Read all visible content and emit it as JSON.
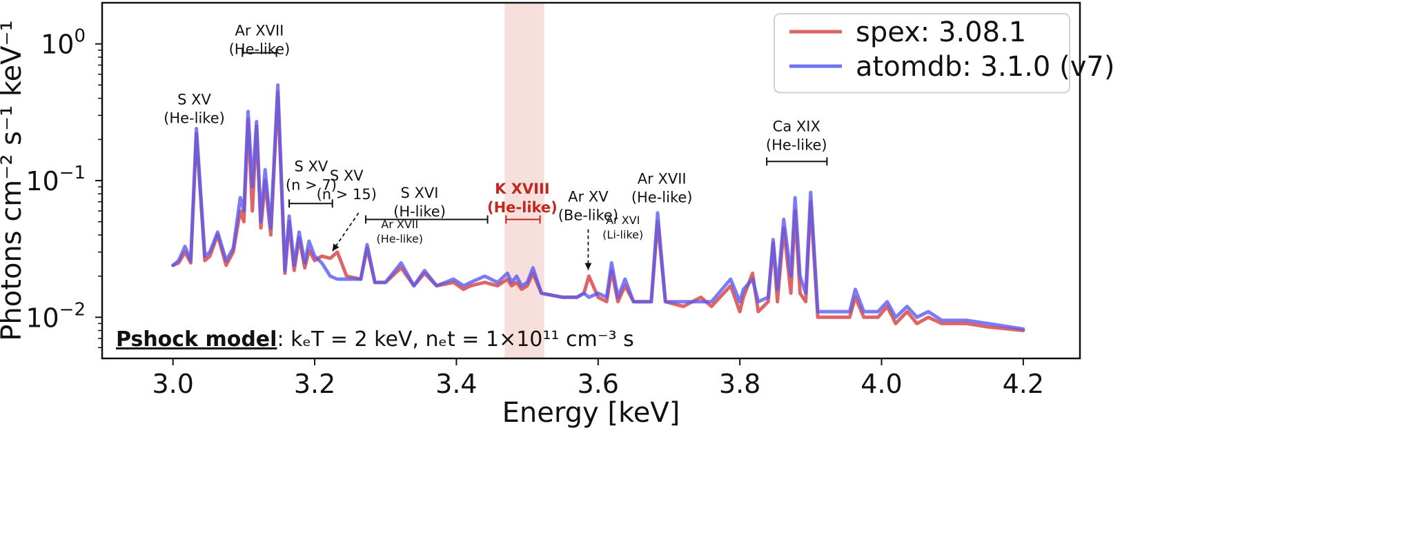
{
  "chart_data": {
    "type": "line",
    "xlabel": "Energy [keV]",
    "ylabel": "Photons cm⁻² s⁻¹ keV⁻¹",
    "xlim": [
      2.9,
      4.28
    ],
    "ylim": [
      0.005,
      2.0
    ],
    "yscale": "log",
    "xticks": [
      3.0,
      3.2,
      3.4,
      3.6,
      3.8,
      4.0,
      4.2
    ],
    "xtick_labels": [
      "3.0",
      "3.2",
      "3.4",
      "3.6",
      "3.8",
      "4.0",
      "4.2"
    ],
    "yticks": [
      {
        "value": 1,
        "base": "10",
        "exp": "0"
      },
      {
        "value": 0.1,
        "base": "10",
        "exp": "−1"
      },
      {
        "value": 0.01,
        "base": "10",
        "exp": "−2"
      }
    ],
    "highlight_band": {
      "x_range": [
        3.468,
        3.524
      ],
      "color": "#f4d6d0"
    },
    "legend": {
      "location": "top-right"
    },
    "series": [
      {
        "name": "spex: 3.08.1",
        "color": "#d84a4a",
        "x": [
          3.0,
          3.008,
          3.017,
          3.025,
          3.033,
          3.045,
          3.052,
          3.063,
          3.075,
          3.085,
          3.095,
          3.1,
          3.106,
          3.112,
          3.118,
          3.124,
          3.13,
          3.138,
          3.148,
          3.158,
          3.164,
          3.171,
          3.178,
          3.186,
          3.192,
          3.2,
          3.21,
          3.222,
          3.232,
          3.245,
          3.265,
          3.274,
          3.285,
          3.3,
          3.322,
          3.34,
          3.355,
          3.372,
          3.396,
          3.41,
          3.42,
          3.44,
          3.458,
          3.472,
          3.478,
          3.485,
          3.492,
          3.5,
          3.508,
          3.52,
          3.55,
          3.57,
          3.58,
          3.587,
          3.6,
          3.612,
          3.619,
          3.628,
          3.638,
          3.65,
          3.675,
          3.684,
          3.695,
          3.72,
          3.745,
          3.76,
          3.787,
          3.8,
          3.805,
          3.818,
          3.826,
          3.84,
          3.847,
          3.853,
          3.862,
          3.872,
          3.878,
          3.885,
          3.893,
          3.9,
          3.91,
          3.93,
          3.955,
          3.963,
          3.975,
          3.995,
          4.008,
          4.02,
          4.036,
          4.05,
          4.066,
          4.085,
          4.12,
          4.15,
          4.2
        ],
        "y": [
          0.024,
          0.025,
          0.03,
          0.025,
          0.22,
          0.026,
          0.028,
          0.04,
          0.024,
          0.03,
          0.06,
          0.05,
          0.28,
          0.06,
          0.25,
          0.045,
          0.1,
          0.04,
          0.44,
          0.021,
          0.05,
          0.022,
          0.038,
          0.023,
          0.031,
          0.026,
          0.028,
          0.027,
          0.03,
          0.02,
          0.019,
          0.032,
          0.018,
          0.018,
          0.023,
          0.017,
          0.021,
          0.017,
          0.018,
          0.016,
          0.017,
          0.018,
          0.017,
          0.019,
          0.017,
          0.018,
          0.016,
          0.017,
          0.021,
          0.015,
          0.014,
          0.014,
          0.015,
          0.02,
          0.014,
          0.013,
          0.022,
          0.013,
          0.017,
          0.013,
          0.013,
          0.05,
          0.013,
          0.012,
          0.014,
          0.012,
          0.017,
          0.011,
          0.014,
          0.021,
          0.011,
          0.013,
          0.035,
          0.013,
          0.045,
          0.015,
          0.06,
          0.015,
          0.013,
          0.07,
          0.01,
          0.01,
          0.01,
          0.014,
          0.01,
          0.01,
          0.012,
          0.009,
          0.011,
          0.009,
          0.01,
          0.009,
          0.009,
          0.0085,
          0.008
        ]
      },
      {
        "name": "atomdb: 3.1.0 (v7)",
        "color": "#5a5af0",
        "x": [
          3.0,
          3.008,
          3.017,
          3.025,
          3.033,
          3.045,
          3.052,
          3.063,
          3.075,
          3.085,
          3.095,
          3.1,
          3.106,
          3.112,
          3.118,
          3.124,
          3.13,
          3.138,
          3.148,
          3.158,
          3.164,
          3.171,
          3.178,
          3.186,
          3.192,
          3.2,
          3.21,
          3.222,
          3.232,
          3.245,
          3.265,
          3.274,
          3.285,
          3.3,
          3.322,
          3.34,
          3.355,
          3.372,
          3.396,
          3.41,
          3.42,
          3.44,
          3.458,
          3.472,
          3.478,
          3.485,
          3.492,
          3.5,
          3.508,
          3.52,
          3.55,
          3.57,
          3.58,
          3.587,
          3.6,
          3.612,
          3.619,
          3.628,
          3.638,
          3.65,
          3.675,
          3.684,
          3.695,
          3.72,
          3.745,
          3.76,
          3.787,
          3.8,
          3.805,
          3.818,
          3.826,
          3.84,
          3.847,
          3.853,
          3.862,
          3.872,
          3.878,
          3.885,
          3.893,
          3.9,
          3.91,
          3.93,
          3.955,
          3.963,
          3.975,
          3.995,
          4.008,
          4.02,
          4.036,
          4.05,
          4.066,
          4.085,
          4.12,
          4.15,
          4.2
        ],
        "y": [
          0.024,
          0.026,
          0.033,
          0.026,
          0.24,
          0.028,
          0.03,
          0.042,
          0.026,
          0.032,
          0.075,
          0.06,
          0.32,
          0.09,
          0.27,
          0.05,
          0.12,
          0.045,
          0.5,
          0.022,
          0.055,
          0.024,
          0.042,
          0.025,
          0.036,
          0.028,
          0.025,
          0.02,
          0.019,
          0.019,
          0.019,
          0.034,
          0.018,
          0.018,
          0.025,
          0.017,
          0.022,
          0.017,
          0.019,
          0.017,
          0.018,
          0.02,
          0.018,
          0.021,
          0.018,
          0.02,
          0.017,
          0.018,
          0.023,
          0.015,
          0.014,
          0.014,
          0.015,
          0.014,
          0.015,
          0.014,
          0.025,
          0.014,
          0.019,
          0.013,
          0.013,
          0.058,
          0.013,
          0.013,
          0.013,
          0.013,
          0.019,
          0.013,
          0.016,
          0.019,
          0.013,
          0.014,
          0.037,
          0.016,
          0.052,
          0.02,
          0.075,
          0.02,
          0.015,
          0.082,
          0.011,
          0.011,
          0.011,
          0.016,
          0.011,
          0.011,
          0.013,
          0.01,
          0.012,
          0.01,
          0.011,
          0.0095,
          0.0095,
          0.009,
          0.0082
        ]
      }
    ],
    "annotations": [
      {
        "id": "sxv-he",
        "lines": [
          "S XV",
          "(He-like)"
        ],
        "x": 3.03,
        "y_log": 0.36
      },
      {
        "id": "arxvii-he-top",
        "lines": [
          "Ar XVII",
          "(He-like)"
        ],
        "x": 3.122,
        "y_log": 1.15,
        "bracket": [
          3.098,
          3.146
        ],
        "bracket_y": 0.86
      },
      {
        "id": "sxv-n7",
        "lines": [
          "S XV",
          "(n > 7)"
        ],
        "x": 3.195,
        "y_log": 0.117,
        "bracket": [
          3.164,
          3.225
        ],
        "bracket_y": 0.068
      },
      {
        "id": "sxv-n15",
        "lines": [
          "S XV",
          "(n > 15)"
        ],
        "x": 3.245,
        "y_log": 0.1
      },
      {
        "id": "sxvi-h",
        "lines": [
          "S XVI",
          "(H-like)"
        ],
        "x": 3.348,
        "y_log": 0.075,
        "bracket": [
          3.272,
          3.444
        ],
        "bracket_y": 0.052
      },
      {
        "id": "arxvii-he-small",
        "lines": [
          "Ar XVII",
          "(He-like)"
        ],
        "x": 3.32,
        "y_log": 0.045,
        "small": true
      },
      {
        "id": "kxviii-he",
        "lines": [
          "K XVIII",
          "(He-like)"
        ],
        "x": 3.493,
        "y_log": 0.08,
        "bracket": [
          3.47,
          3.518
        ],
        "bracket_y": 0.052,
        "red": true
      },
      {
        "id": "arxv-be",
        "lines": [
          "Ar XV",
          "(Be-like)"
        ],
        "x": 3.586,
        "y_log": 0.07
      },
      {
        "id": "arxvi-li",
        "lines": [
          "Ar XVI",
          "(Li-like)"
        ],
        "x": 3.635,
        "y_log": 0.048,
        "small": true
      },
      {
        "id": "arxvii-he-mid",
        "lines": [
          "Ar XVII",
          "(He-like)"
        ],
        "x": 3.69,
        "y_log": 0.095
      },
      {
        "id": "caxix-he",
        "lines": [
          "Ca XIX",
          "(He-like)"
        ],
        "x": 3.88,
        "y_log": 0.23,
        "bracket": [
          3.838,
          3.923
        ],
        "bracket_y": 0.138
      }
    ],
    "model_label": {
      "name": "Pshock model",
      "separator": ": ",
      "params": "kₑT = 2 keV, nₑt = 1×10¹¹ cm⁻³ s"
    }
  }
}
